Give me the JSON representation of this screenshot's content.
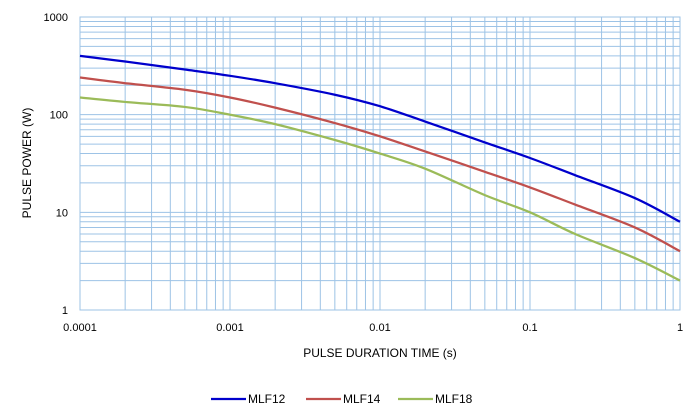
{
  "chart_data": {
    "type": "line",
    "x_scale": "log",
    "y_scale": "log",
    "xlim": [
      0.0001,
      1
    ],
    "ylim": [
      1,
      1000
    ],
    "grid": true,
    "grid_color": "#9dc3e6",
    "xlabel": "PULSE DURATION TIME (s)",
    "ylabel": "PULSE POWER (W)",
    "x_tick_labels": [
      "0.0001",
      "0.001",
      "0.01",
      "0.1",
      "1"
    ],
    "y_tick_labels": [
      "1",
      "10",
      "100",
      "1000"
    ],
    "legend_position": "bottom",
    "x": [
      0.0001,
      0.0002,
      0.0005,
      0.001,
      0.002,
      0.005,
      0.01,
      0.02,
      0.05,
      0.1,
      0.2,
      0.5,
      1
    ],
    "series": [
      {
        "name": "MLF12",
        "color": "#0000cc",
        "values": [
          400,
          350,
          290,
          250,
          210,
          160,
          122,
          85,
          52,
          36,
          24,
          14,
          8
        ]
      },
      {
        "name": "MLF14",
        "color": "#c0504d",
        "values": [
          240,
          210,
          180,
          150,
          118,
          82,
          60,
          42,
          26,
          18,
          12,
          7,
          4
        ]
      },
      {
        "name": "MLF18",
        "color": "#9bbb59",
        "values": [
          150,
          135,
          120,
          100,
          80,
          55,
          40,
          28,
          15,
          10,
          6,
          3.4,
          2
        ]
      }
    ]
  }
}
